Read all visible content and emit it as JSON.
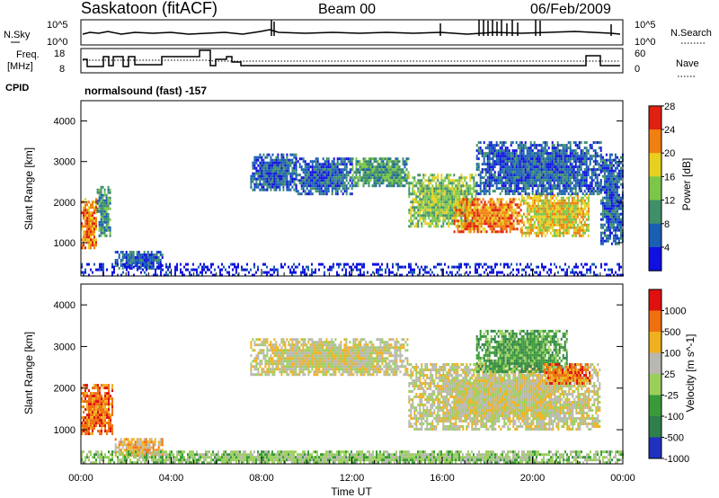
{
  "header": {
    "site": "Saskatoon (fitACF)",
    "beam": "Beam 00",
    "date": "06/Feb/2009"
  },
  "noise_panel": {
    "left_label": "N.Sky",
    "right_label": "N.Search",
    "left_ticks": [
      "10^5",
      "10^0"
    ],
    "right_ticks": [
      "10^5",
      "10^0"
    ]
  },
  "freq_panel": {
    "left_label_line1": "Freq.",
    "left_label_line2": "[MHz]",
    "right_label": "Nave",
    "left_ticks": [
      "18",
      "8"
    ],
    "right_ticks": [
      "60",
      "0"
    ],
    "cpid_label": "CPID",
    "cpid_text": "normalsound (fast) -157"
  },
  "x_axis": {
    "ticks": [
      "00:00",
      "04:00",
      "08:00",
      "12:00",
      "16:00",
      "20:00",
      "00:00"
    ],
    "label": "Time UT"
  },
  "chart_data": [
    {
      "type": "heatmap",
      "panel": "power",
      "ylabel": "Slant Range [km]",
      "y_ticks": [
        "1000",
        "2000",
        "3000",
        "4000"
      ],
      "ylim": [
        180,
        4500
      ],
      "xlim_hours": [
        0,
        24
      ],
      "colorbar_label": "Power [dB]",
      "colorbar_ticks": [
        "4",
        "8",
        "12",
        "16",
        "20",
        "24",
        "28"
      ],
      "colors": [
        "#1010e0",
        "#1a5fb4",
        "#3f8f6a",
        "#7cc64a",
        "#e8d020",
        "#f08010",
        "#e02010"
      ],
      "regions": [
        {
          "t": [
            0.0,
            0.7
          ],
          "r": [
            900,
            2100
          ],
          "level": 5
        },
        {
          "t": [
            0.7,
            1.3
          ],
          "r": [
            1200,
            2400
          ],
          "level": 2
        },
        {
          "t": [
            1.5,
            3.6
          ],
          "r": [
            400,
            800
          ],
          "level": 1
        },
        {
          "t": [
            7.5,
            9.5
          ],
          "r": [
            2300,
            3200
          ],
          "level": 1
        },
        {
          "t": [
            9.5,
            12.0
          ],
          "r": [
            2200,
            3100
          ],
          "level": 1
        },
        {
          "t": [
            12.0,
            14.5
          ],
          "r": [
            2400,
            3100
          ],
          "level": 2
        },
        {
          "t": [
            14.5,
            17.5
          ],
          "r": [
            1400,
            2700
          ],
          "level": 3
        },
        {
          "t": [
            16.5,
            19.5
          ],
          "r": [
            1300,
            2100
          ],
          "level": 5
        },
        {
          "t": [
            19.5,
            22.5
          ],
          "r": [
            1200,
            2200
          ],
          "level": 4
        },
        {
          "t": [
            17.5,
            23.0
          ],
          "r": [
            2200,
            3500
          ],
          "level": 1
        },
        {
          "t": [
            23.0,
            24.0
          ],
          "r": [
            1000,
            3200
          ],
          "level": 1
        },
        {
          "t": [
            0.0,
            24.0
          ],
          "r": [
            200,
            500
          ],
          "level": 0
        }
      ]
    },
    {
      "type": "heatmap",
      "panel": "velocity",
      "ylabel": "Slant Range [km]",
      "y_ticks": [
        "1000",
        "2000",
        "3000",
        "4000"
      ],
      "ylim": [
        180,
        4500
      ],
      "xlim_hours": [
        0,
        24
      ],
      "colorbar_label": "Velocity [m s^-1]",
      "colorbar_ticks": [
        "1000",
        "500",
        "100",
        "25",
        "-25",
        "-100",
        "-500",
        "-1000"
      ],
      "colors": [
        "#2030c0",
        "#2f7f4a",
        "#3a9a3a",
        "#9ad05a",
        "#b8b8b0",
        "#f0b020",
        "#f07010",
        "#e01010"
      ],
      "regions": [
        {
          "t": [
            0.0,
            1.4
          ],
          "r": [
            900,
            2100
          ],
          "level": 6
        },
        {
          "t": [
            1.5,
            3.6
          ],
          "r": [
            400,
            800
          ],
          "level": 5
        },
        {
          "t": [
            7.5,
            14.5
          ],
          "r": [
            2300,
            3200
          ],
          "level": 4
        },
        {
          "t": [
            14.5,
            23.0
          ],
          "r": [
            1000,
            2600
          ],
          "level": 4
        },
        {
          "t": [
            17.5,
            21.5
          ],
          "r": [
            2400,
            3400
          ],
          "level": 2
        },
        {
          "t": [
            20.5,
            22.5
          ],
          "r": [
            2100,
            2600
          ],
          "level": 6
        },
        {
          "t": [
            0.0,
            24.0
          ],
          "r": [
            200,
            500
          ],
          "level": 3
        }
      ]
    }
  ]
}
